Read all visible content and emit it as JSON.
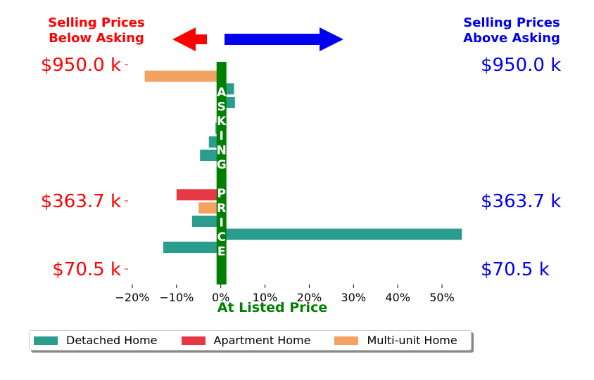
{
  "chart_data": {
    "type": "bar",
    "orientation": "horizontal",
    "header_left": [
      "Selling Prices",
      "Below Asking"
    ],
    "header_right": [
      "Selling Prices",
      "Above Asking"
    ],
    "xlabel": "At Listed Price",
    "xlim": [
      -0.2,
      0.55
    ],
    "xticks": [
      -0.2,
      -0.1,
      0,
      0.1,
      0.2,
      0.3,
      0.4,
      0.5
    ],
    "xtick_labels": [
      "−20%",
      "−10%",
      "0%",
      "10%",
      "20%",
      "30%",
      "40%",
      "50%"
    ],
    "ylim": [
      70.5,
      950.0
    ],
    "ytick_values": [
      950.0,
      363.7,
      70.5
    ],
    "ytick_labels": [
      "$950.0 k",
      "$363.7 k",
      "$70.5 k"
    ],
    "center_label": [
      "A",
      "S",
      "K",
      "I",
      "N",
      "G",
      "",
      "P",
      "R",
      "I",
      "C",
      "E"
    ],
    "series": [
      {
        "name": "Detached Home",
        "color": "#2a9d8f"
      },
      {
        "name": "Apartment Home",
        "color": "#e63946"
      },
      {
        "name": "Multi-unit Home",
        "color": "#f4a261"
      }
    ],
    "bars": [
      {
        "price": 900.0,
        "pct": -0.172,
        "series": 2
      },
      {
        "price": 846.0,
        "pct": 0.03,
        "series": 0
      },
      {
        "price": 787.0,
        "pct": 0.032,
        "series": 0
      },
      {
        "price": 676.0,
        "pct": -0.012,
        "series": 0
      },
      {
        "price": 617.0,
        "pct": -0.027,
        "series": 0
      },
      {
        "price": 560.0,
        "pct": -0.047,
        "series": 0
      },
      {
        "price": 390.0,
        "pct": -0.1,
        "series": 1
      },
      {
        "price": 333.0,
        "pct": -0.05,
        "series": 2
      },
      {
        "price": 276.0,
        "pct": -0.065,
        "series": 0
      },
      {
        "price": 220.0,
        "pct": 0.545,
        "series": 0
      },
      {
        "price": 164.0,
        "pct": -0.13,
        "series": 0
      }
    ],
    "colors": {
      "left": "#ff0000",
      "right": "#0000ee",
      "asking": "#008000"
    }
  }
}
